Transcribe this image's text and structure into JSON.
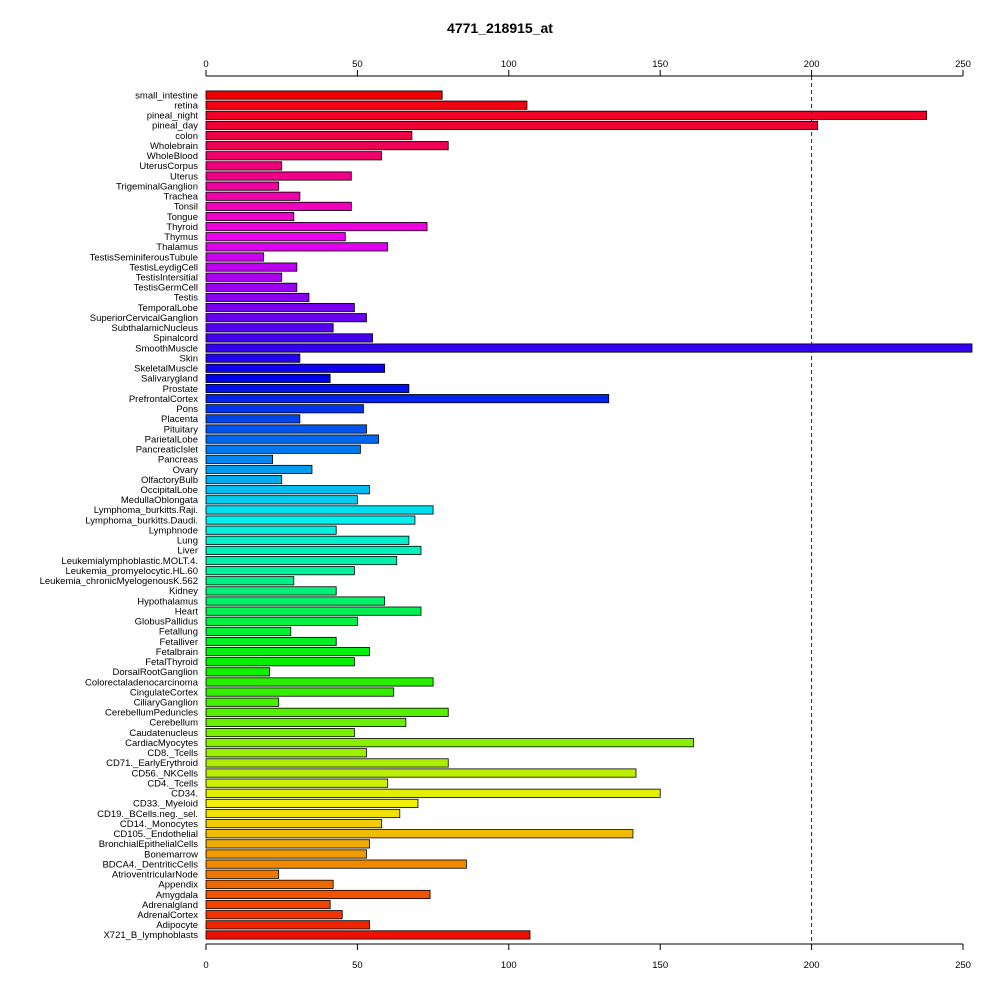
{
  "chart_data": {
    "type": "bar",
    "orientation": "horizontal",
    "title": "4771_218915_at",
    "xlabel": "",
    "ylabel": "",
    "xlim": [
      0,
      250
    ],
    "ticks": [
      0,
      50,
      100,
      150,
      200,
      250
    ],
    "tick_labels": [
      "0",
      "50",
      "100",
      "150",
      "200",
      "250"
    ],
    "reference_line": 200,
    "grid": false,
    "legend": "none",
    "categories": [
      "small_intestine",
      "retina",
      "pineal_night",
      "pineal_day",
      "colon",
      "Wholebrain",
      "WholeBlood",
      "UterusCorpus",
      "Uterus",
      "TrigeminalGanglion",
      "Trachea",
      "Tonsil",
      "Tongue",
      "Thyroid",
      "Thymus",
      "Thalamus",
      "TestisSeminiferousTubule",
      "TestisLeydigCell",
      "TestisIntersitial",
      "TestisGermCell",
      "Testis",
      "TemporalLobe",
      "SuperiorCervicalGanglion",
      "SubthalamicNucleus",
      "Spinalcord",
      "SmoothMuscle",
      "Skin",
      "SkeletalMuscle",
      "Salivarygland",
      "Prostate",
      "PrefrontalCortex",
      "Pons",
      "Placenta",
      "Pituitary",
      "ParietalLobe",
      "PancreaticIslet",
      "Pancreas",
      "Ovary",
      "OlfactoryBulb",
      "OccipitalLobe",
      "MedullaOblongata",
      "Lymphoma_burkitts.Raji.",
      "Lymphoma_burkitts.Daudi.",
      "Lymphnode",
      "Lung",
      "Liver",
      "Leukemialymphoblastic.MOLT.4.",
      "Leukemia_promyelocytic.HL.60",
      "Leukemia_chronicMyelogenousK.562",
      "Kidney",
      "Hypothalamus",
      "Heart",
      "GlobusPallidus",
      "Fetallung",
      "Fetalliver",
      "Fetalbrain",
      "FetalThyroid",
      "DorsalRootGanglion",
      "Colorectaladenocarcinoma",
      "CingulateCortex",
      "CiliaryGanglion",
      "CerebellumPeduncles",
      "Cerebellum",
      "Caudatenucleus",
      "CardiacMyocytes",
      "CD8._Tcells",
      "CD71._EarlyErythroid",
      "CD56._NKCells",
      "CD4._Tcells",
      "CD34.",
      "CD33._Myeloid",
      "CD19._BCells.neg._sel.",
      "CD14._Monocytes",
      "CD105._Endothelial",
      "BronchialEpithelialCells",
      "Bonemarrow",
      "BDCA4._DentriticCells",
      "AtrioventricularNode",
      "Appendix",
      "Amygdala",
      "Adrenalgland",
      "AdrenalCortex",
      "Adipocyte",
      "X721_B_lymphoblasts"
    ],
    "values": [
      78,
      106,
      238,
      202,
      68,
      80,
      58,
      25,
      48,
      24,
      31,
      48,
      29,
      73,
      46,
      60,
      19,
      30,
      25,
      30,
      34,
      49,
      53,
      42,
      55,
      254,
      31,
      59,
      41,
      67,
      133,
      52,
      31,
      53,
      57,
      51,
      22,
      35,
      25,
      54,
      50,
      75,
      69,
      43,
      67,
      71,
      63,
      49,
      29,
      43,
      59,
      71,
      50,
      28,
      43,
      54,
      49,
      21,
      75,
      62,
      24,
      80,
      66,
      49,
      161,
      53,
      80,
      142,
      60,
      150,
      70,
      64,
      58,
      141,
      54,
      53,
      86,
      24,
      42,
      74,
      41,
      45,
      54,
      107
    ]
  }
}
